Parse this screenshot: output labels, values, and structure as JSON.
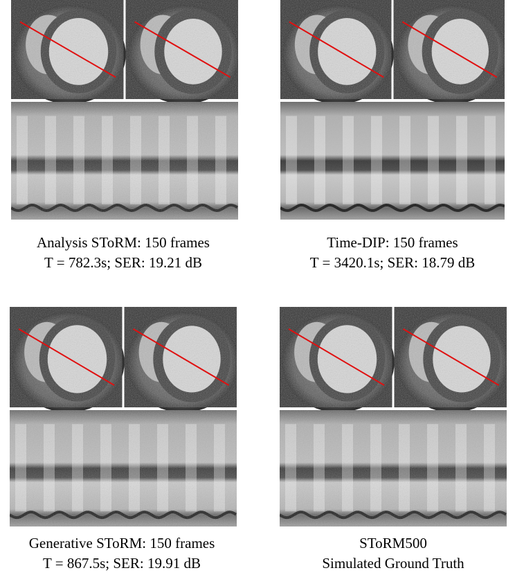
{
  "panels": [
    {
      "caption": [
        "Analysis SToRM: 150 frames",
        "T = 782.3s; SER: 19.21 dB"
      ]
    },
    {
      "caption": [
        "Time-DIP: 150 frames",
        "T = 3420.1s; SER: 18.79 dB"
      ]
    },
    {
      "caption": [
        "Generative SToRM: 150 frames",
        "T = 867.5s; SER: 19.91 dB"
      ]
    },
    {
      "caption": [
        "SToRM500",
        "Simulated Ground Truth"
      ]
    }
  ]
}
